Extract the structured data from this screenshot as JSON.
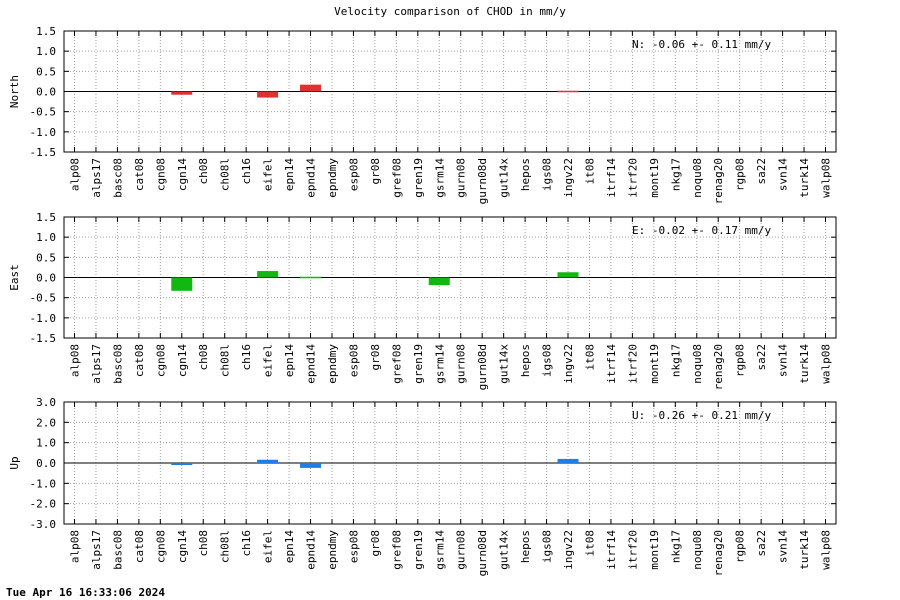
{
  "page": {
    "title": "Velocity comparison of CHOD in mm/y",
    "footer": "Tue Apr 16 16:33:06 2024"
  },
  "chart_data": [
    {
      "type": "bar",
      "ylabel": "North",
      "annotation": "N:  -0.06 +-  0.11 mm/y",
      "color": "#e03131",
      "ylim": [
        -1.5,
        1.5
      ],
      "yticks": [
        "1.5",
        "1.0",
        "0.5",
        "0.0",
        "-0.5",
        "-1.0",
        "-1.5"
      ],
      "grid": true,
      "categories": [
        "alp08",
        "alps17",
        "basc08",
        "cat08",
        "cgn08",
        "cgn14",
        "ch08",
        "ch08l",
        "ch16",
        "eifel",
        "epn14",
        "epnd14",
        "epndmy",
        "esp08",
        "gr08",
        "gref08",
        "gren19",
        "gsrm14",
        "gurn08",
        "gurn08d",
        "gut14x",
        "hepos",
        "igs08",
        "ingv22",
        "it08",
        "itrf14",
        "itrf20",
        "mont19",
        "nkg17",
        "noqu08",
        "renag20",
        "rgp08",
        "sa22",
        "svn14",
        "turk14",
        "walp08"
      ],
      "values": [
        null,
        null,
        null,
        null,
        null,
        -0.08,
        null,
        null,
        null,
        -0.15,
        null,
        0.17,
        null,
        null,
        null,
        null,
        null,
        null,
        null,
        null,
        null,
        null,
        null,
        0.01,
        null,
        null,
        null,
        null,
        null,
        null,
        null,
        null,
        null,
        null,
        null,
        null
      ]
    },
    {
      "type": "bar",
      "ylabel": "East",
      "annotation": "E:  -0.02 +-  0.17 mm/y",
      "color": "#12b812",
      "ylim": [
        -1.5,
        1.5
      ],
      "yticks": [
        "1.5",
        "1.0",
        "0.5",
        "0.0",
        "-0.5",
        "-1.0",
        "-1.5"
      ],
      "grid": true,
      "categories": [
        "alp08",
        "alps17",
        "basc08",
        "cat08",
        "cgn08",
        "cgn14",
        "ch08",
        "ch08l",
        "ch16",
        "eifel",
        "epn14",
        "epnd14",
        "epndmy",
        "esp08",
        "gr08",
        "gref08",
        "gren19",
        "gsrm14",
        "gurn08",
        "gurn08d",
        "gut14x",
        "hepos",
        "igs08",
        "ingv22",
        "it08",
        "itrf14",
        "itrf20",
        "mont19",
        "nkg17",
        "noqu08",
        "renag20",
        "rgp08",
        "sa22",
        "svn14",
        "turk14",
        "walp08"
      ],
      "values": [
        null,
        null,
        null,
        null,
        null,
        -0.33,
        null,
        null,
        null,
        0.16,
        null,
        0.02,
        null,
        null,
        null,
        null,
        null,
        -0.19,
        null,
        null,
        null,
        null,
        null,
        0.13,
        null,
        null,
        null,
        null,
        null,
        null,
        null,
        null,
        null,
        null,
        null,
        null
      ]
    },
    {
      "type": "bar",
      "ylabel": "Up",
      "annotation": "U:  -0.26 +-  0.21 mm/y",
      "color": "#1c7ee6",
      "ylim": [
        -3.0,
        3.0
      ],
      "yticks": [
        "3.0",
        "2.0",
        "1.0",
        "0.0",
        "-1.0",
        "-2.0",
        "-3.0"
      ],
      "grid": true,
      "categories": [
        "alp08",
        "alps17",
        "basc08",
        "cat08",
        "cgn08",
        "cgn14",
        "ch08",
        "ch08l",
        "ch16",
        "eifel",
        "epn14",
        "epnd14",
        "epndmy",
        "esp08",
        "gr08",
        "gref08",
        "gren19",
        "gsrm14",
        "gurn08",
        "gurn08d",
        "gut14x",
        "hepos",
        "igs08",
        "ingv22",
        "it08",
        "itrf14",
        "itrf20",
        "mont19",
        "nkg17",
        "noqu08",
        "renag20",
        "rgp08",
        "sa22",
        "svn14",
        "turk14",
        "walp08"
      ],
      "values": [
        null,
        null,
        null,
        null,
        null,
        -0.1,
        null,
        null,
        null,
        0.16,
        null,
        -0.24,
        null,
        null,
        null,
        null,
        null,
        null,
        null,
        null,
        null,
        null,
        null,
        0.2,
        null,
        null,
        null,
        null,
        null,
        null,
        null,
        null,
        null,
        null,
        null,
        null
      ]
    }
  ]
}
